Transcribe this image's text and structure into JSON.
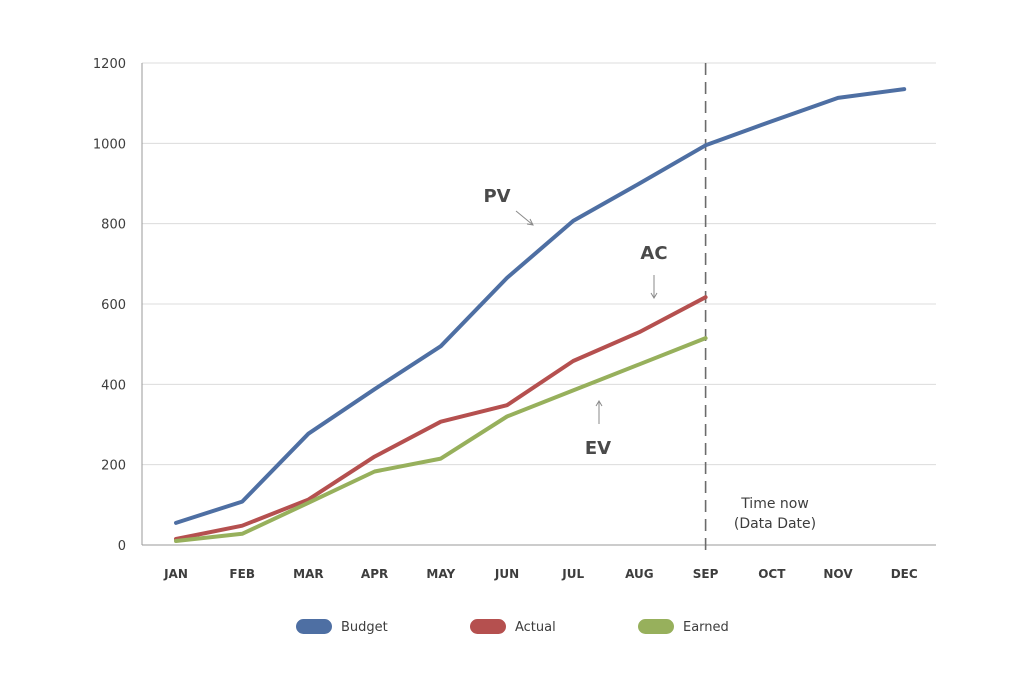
{
  "chart_data": {
    "type": "line",
    "title": "",
    "xlabel": "",
    "ylabel": "",
    "categories": [
      "JAN",
      "FEB",
      "MAR",
      "APR",
      "MAY",
      "JUN",
      "JUL",
      "AUG",
      "SEP",
      "OCT",
      "NOV",
      "DEC"
    ],
    "ylim": [
      0,
      1200
    ],
    "yticks": [
      "0",
      "200",
      "400",
      "600",
      "800",
      "1000",
      "1200"
    ],
    "grid": "horizontal",
    "legend_position": "bottom",
    "series": [
      {
        "name": "Budget",
        "color": "#4e6fa3",
        "values": [
          55,
          108,
          277,
          388,
          495,
          665,
          807,
          900,
          995,
          1055,
          1113,
          1135
        ]
      },
      {
        "name": "Actual",
        "color": "#b5504f",
        "values": [
          15,
          48,
          113,
          220,
          307,
          348,
          458,
          530,
          617,
          null,
          null,
          null
        ]
      },
      {
        "name": "Earned",
        "color": "#97b05c",
        "values": [
          10,
          28,
          105,
          183,
          215,
          320,
          385,
          450,
          515,
          null,
          null,
          null
        ]
      }
    ],
    "annotations": [
      {
        "text": "PV",
        "series": "Budget"
      },
      {
        "text": "AC",
        "series": "Actual"
      },
      {
        "text": "EV",
        "series": "Earned"
      }
    ],
    "vertical_marker": {
      "category": "SEP",
      "style": "dashed",
      "label_lines": [
        "Time now",
        "(Data Date)"
      ]
    }
  }
}
